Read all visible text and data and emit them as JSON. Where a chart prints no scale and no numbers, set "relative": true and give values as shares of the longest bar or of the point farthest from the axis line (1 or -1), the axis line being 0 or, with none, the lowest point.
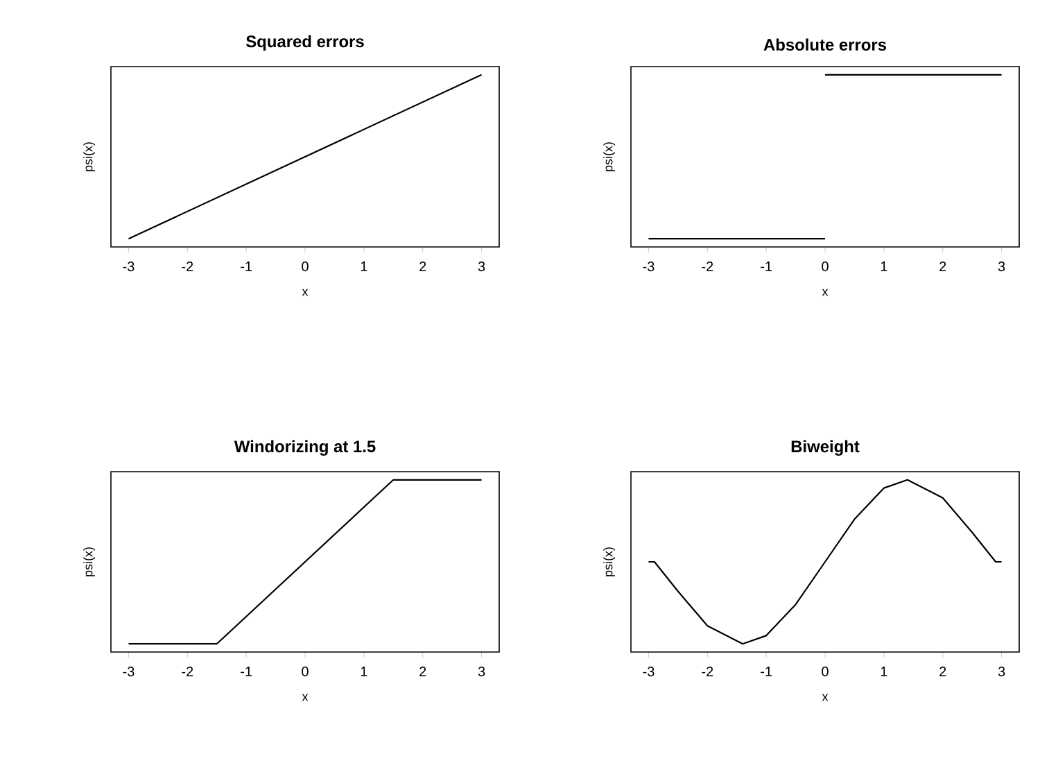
{
  "chart_data": [
    {
      "type": "line",
      "title": "Squared errors",
      "xlabel": "x",
      "ylabel": "psi(x)",
      "relative": true,
      "tick_labels": "x",
      "color": "#000000",
      "xlim": [
        -3.3,
        3.3
      ],
      "xticks": [
        -3,
        -2,
        -1,
        0,
        1,
        2,
        3
      ],
      "x": [
        -3,
        3
      ],
      "values": [
        0,
        1
      ]
    },
    {
      "type": "line",
      "title": "Absolute errors",
      "xlabel": "x",
      "ylabel": "psi(x)",
      "relative": true,
      "tick_labels": "x",
      "color": "#000000",
      "xlim": [
        -3.3,
        3.3
      ],
      "xticks": [
        -3,
        -2,
        -1,
        0,
        1,
        2,
        3
      ],
      "x": [
        -3,
        0,
        null,
        0,
        3
      ],
      "values": [
        0,
        0,
        null,
        1,
        1
      ]
    },
    {
      "type": "line",
      "title": "Windorizing at 1.5",
      "xlabel": "x",
      "ylabel": "psi(x)",
      "relative": true,
      "tick_labels": "x",
      "color": "#000000",
      "xlim": [
        -3.3,
        3.3
      ],
      "xticks": [
        -3,
        -2,
        -1,
        0,
        1,
        2,
        3
      ],
      "x": [
        -3,
        -1.5,
        1.5,
        3
      ],
      "values": [
        0,
        0,
        1,
        1
      ]
    },
    {
      "type": "line",
      "title": "Biweight",
      "xlabel": "x",
      "ylabel": "psi(x)",
      "relative": true,
      "tick_labels": "x",
      "color": "#000000",
      "xlim": [
        -3.3,
        3.3
      ],
      "xticks": [
        -3,
        -2,
        -1,
        0,
        1,
        2,
        3
      ],
      "x": [
        -3,
        -2.9,
        -2.5,
        -2,
        -1.4,
        -1,
        -0.5,
        0,
        0.5,
        1,
        1.4,
        2,
        2.5,
        2.9,
        3
      ],
      "values": [
        0.5,
        0.5,
        0.32,
        0.11,
        0,
        0.05,
        0.24,
        0.5,
        0.76,
        0.95,
        1,
        0.89,
        0.68,
        0.5,
        0.5
      ]
    }
  ]
}
